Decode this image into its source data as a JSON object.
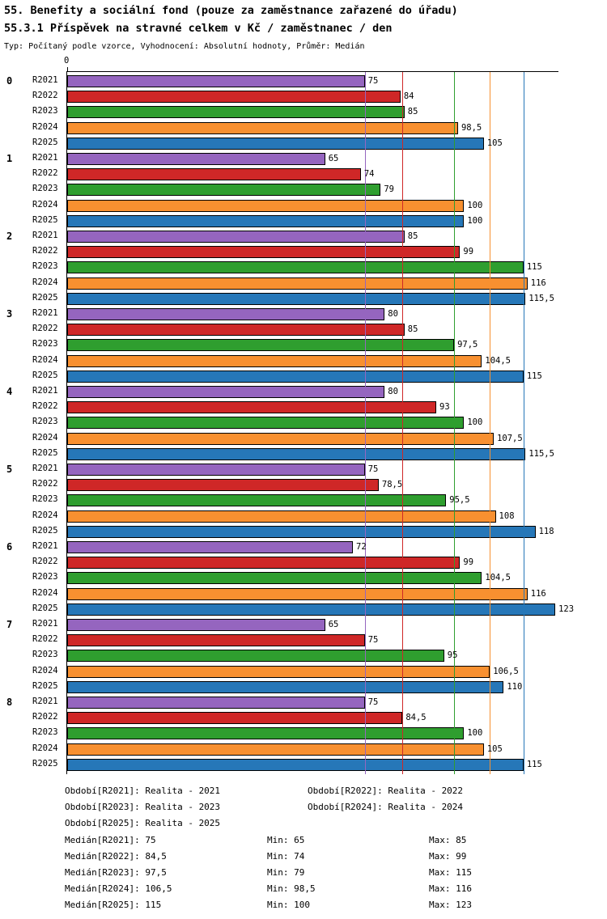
{
  "title": "55. Benefity a sociální fond (pouze za zaměstnance zařazené do úřadu)",
  "meta_line": "Typ: Počítaný podle vzorce, Vyhodnocení: Absolutní hodnoty, Průměr: Medián",
  "chart_data": {
    "type": "bar",
    "orientation": "horizontal",
    "title": "55.3.1 Příspěvek na stravné celkem v Kč / zaměstnanec / den",
    "axis_zero_label": "0",
    "xlim": [
      0,
      124
    ],
    "grid": false,
    "decimal_separator": ",",
    "median_lines_shown": true,
    "categories": [
      "0",
      "1",
      "2",
      "3",
      "4",
      "5",
      "6",
      "7",
      "8"
    ],
    "series": [
      {
        "name": "R2021",
        "period": "Realita - 2021",
        "color": "#9565bf",
        "values": [
          75,
          65,
          85,
          80,
          80,
          75,
          72,
          65,
          75
        ],
        "median": 75,
        "min": 65,
        "max": 85
      },
      {
        "name": "R2022",
        "period": "Realita - 2022",
        "color": "#cf2727",
        "values": [
          84,
          74,
          99,
          85,
          93,
          78.5,
          99,
          75,
          84.5
        ],
        "median": 84.5,
        "min": 74,
        "max": 99
      },
      {
        "name": "R2023",
        "period": "Realita - 2023",
        "color": "#2f9e2f",
        "values": [
          85,
          79,
          115,
          97.5,
          100,
          95.5,
          104.5,
          95,
          100
        ],
        "median": 97.5,
        "min": 79,
        "max": 115
      },
      {
        "name": "R2024",
        "period": "Realita - 2024",
        "color": "#f89030",
        "values": [
          98.5,
          100,
          116,
          104.5,
          107.5,
          108,
          116,
          106.5,
          105
        ],
        "median": 106.5,
        "min": 98.5,
        "max": 116
      },
      {
        "name": "R2025",
        "period": "Realita - 2025",
        "color": "#2677b8",
        "values": [
          105,
          100,
          115.5,
          115,
          115.5,
          118,
          123,
          110,
          115
        ],
        "median": 115,
        "min": 100,
        "max": 123
      }
    ]
  },
  "legend": {
    "period_items": [
      "Období[R2021]: Realita - 2021",
      "Období[R2022]: Realita - 2022",
      "Období[R2023]: Realita - 2023",
      "Období[R2024]: Realita - 2024",
      "Období[R2025]: Realita - 2025"
    ],
    "stat_rows": [
      {
        "median": "Medián[R2021]: 75",
        "min": "Min: 65",
        "max": "Max: 85"
      },
      {
        "median": "Medián[R2022]: 84,5",
        "min": "Min: 74",
        "max": "Max: 99"
      },
      {
        "median": "Medián[R2023]: 97,5",
        "min": "Min: 79",
        "max": "Max: 115"
      },
      {
        "median": "Medián[R2024]: 106,5",
        "min": "Min: 98,5",
        "max": "Max: 116"
      },
      {
        "median": "Medián[R2025]: 115",
        "min": "Min: 100",
        "max": "Max: 123"
      }
    ]
  }
}
